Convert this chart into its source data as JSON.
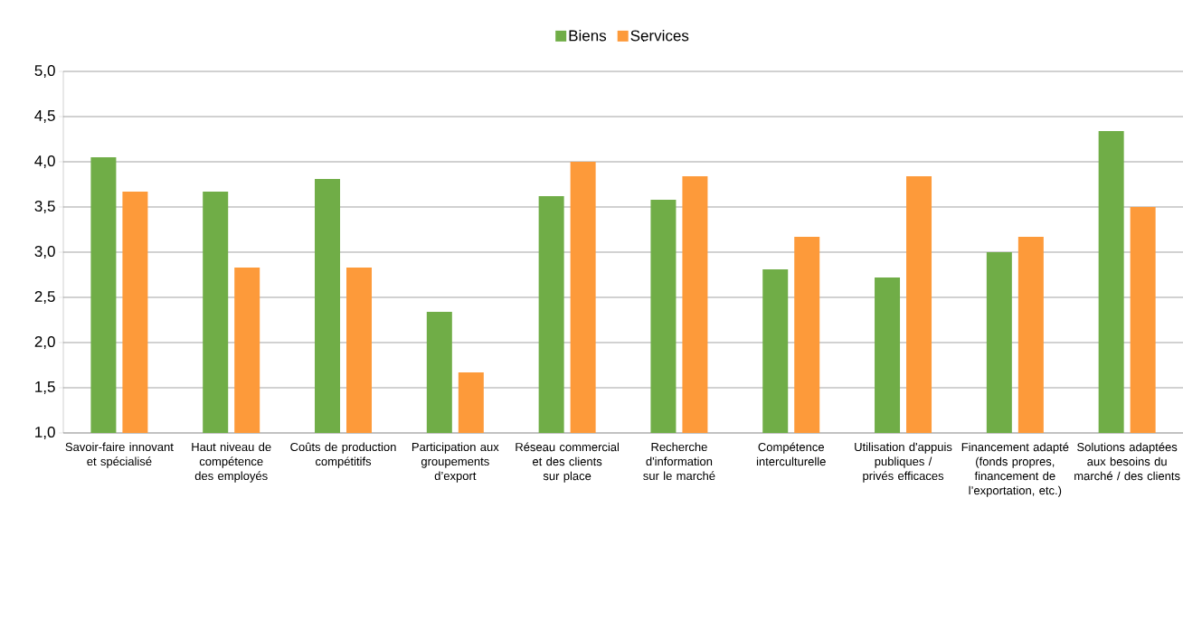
{
  "chart_data": {
    "type": "bar",
    "categories": [
      "Savoir-faire innovant et spécialisé",
      "Haut niveau de compétence des employés",
      "Coûts de production compétitifs",
      "Participation aux groupements d’export",
      "Réseau commercial et des clients sur place",
      "Recherche d'information sur le marché",
      "Compétence interculturelle",
      "Utilisation d'appuis publiques / privés efficaces",
      "Financement adapté (fonds propres, financement de l’exportation, etc.)",
      "Solutions adaptées aux besoins du marché / des clients"
    ],
    "series": [
      {
        "name": "Biens",
        "color": "#70ad47",
        "values": [
          4.05,
          3.67,
          3.81,
          2.34,
          3.62,
          3.58,
          2.81,
          2.72,
          3.0,
          4.34
        ]
      },
      {
        "name": "Services",
        "color": "#fd9a3a",
        "values": [
          3.67,
          2.83,
          2.83,
          1.67,
          4.0,
          3.84,
          3.17,
          3.84,
          3.17,
          3.5
        ]
      }
    ],
    "ylim": [
      1,
      5
    ],
    "yticks": [
      {
        "value": 1,
        "label": "1,0"
      },
      {
        "value": 1.5,
        "label": "1,5"
      },
      {
        "value": 2,
        "label": "2,0"
      },
      {
        "value": 2.5,
        "label": "2,5"
      },
      {
        "value": 3,
        "label": "3,0"
      },
      {
        "value": 3.5,
        "label": "3,5"
      },
      {
        "value": 4,
        "label": "4,0"
      },
      {
        "value": 4.5,
        "label": "4,5"
      },
      {
        "value": 5,
        "label": "5,0"
      }
    ],
    "grid": "y",
    "legend": "top"
  }
}
